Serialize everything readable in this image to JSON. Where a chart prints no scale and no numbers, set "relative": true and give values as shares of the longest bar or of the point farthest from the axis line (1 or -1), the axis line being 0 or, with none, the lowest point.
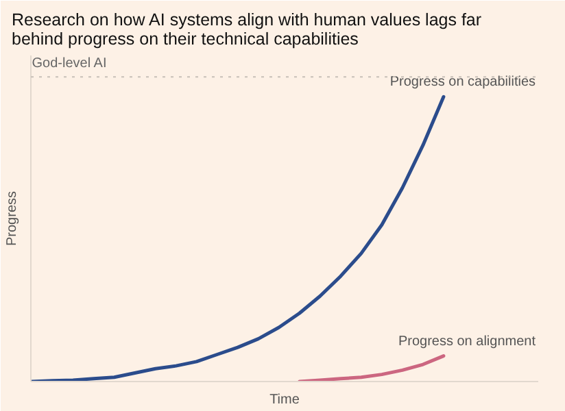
{
  "chart_data": {
    "type": "line",
    "title": "Research on how AI systems align with human values lags far behind progress on their technical capabilities",
    "xlabel": "Time",
    "ylabel": "Progress",
    "relative": true,
    "grid": false,
    "legend": false,
    "marker": "none",
    "line_style": "solid",
    "categories": [
      null,
      null,
      null,
      null,
      null,
      null,
      null,
      null,
      null,
      null,
      null,
      null,
      null,
      null,
      null,
      null,
      null,
      null,
      null,
      null,
      null
    ],
    "series": [
      {
        "name": "Progress on capabilities",
        "color": "#2b4c8c",
        "values": [
          0,
          0.003,
          0.005,
          0.01,
          0.015,
          0.03,
          0.045,
          0.055,
          0.07,
          0.095,
          0.12,
          0.15,
          0.19,
          0.24,
          0.3,
          0.37,
          0.45,
          0.55,
          0.68,
          0.83,
          1
        ]
      },
      {
        "name": "Progress on alignment",
        "color": "#cc6680",
        "values": [
          null,
          null,
          null,
          null,
          null,
          null,
          null,
          null,
          null,
          null,
          null,
          null,
          null,
          0,
          0.005,
          0.01,
          0.015,
          0.025,
          0.04,
          0.06,
          0.09
        ]
      }
    ],
    "ref_lines": [
      {
        "axis": "y",
        "value": 1.07,
        "label": "God-level AI",
        "color": "#c8c0b8",
        "line_style": "dotted"
      }
    ]
  }
}
